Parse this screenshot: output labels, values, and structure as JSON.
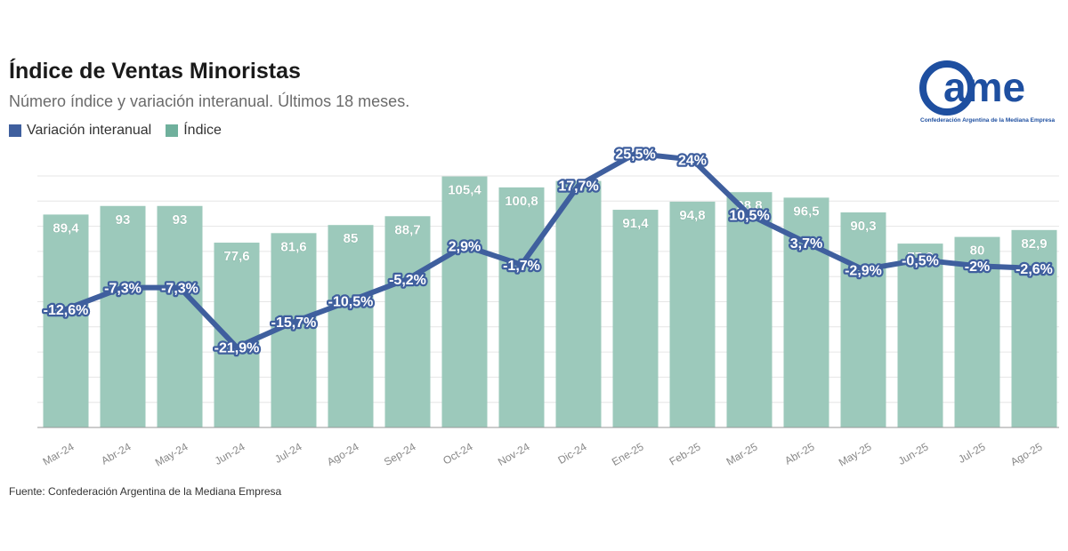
{
  "title": "Índice de Ventas Minoristas",
  "subtitle": "Número índice y variación interanual. Últimos 18 meses.",
  "source": "Fuente: Confederación Argentina de la Mediana Empresa",
  "logo": {
    "text": "ame",
    "caption": "Confederación Argentina de la Mediana Empresa"
  },
  "colors": {
    "bar": "#9cc9bb",
    "line": "#3f5f9e",
    "grid": "#e6e6e6",
    "bar_label": "#ffffff",
    "line_label": "#ffffff",
    "tick": "#888888"
  },
  "chart_data": {
    "type": "bar",
    "categories": [
      "Mar-24",
      "Abr-24",
      "May-24",
      "Jun-24",
      "Jul-24",
      "Ago-24",
      "Sep-24",
      "Oct-24",
      "Nov-24",
      "Dic-24",
      "Ene-25",
      "Feb-25",
      "Mar-25",
      "Abr-25",
      "May-25",
      "Jun-25",
      "Jul-25",
      "Ago-25"
    ],
    "legend_position": "top-left",
    "grid": true,
    "series": [
      {
        "name": "Variación interanual",
        "type": "line",
        "values": [
          -12.6,
          -7.3,
          -7.3,
          -21.9,
          -15.7,
          -10.5,
          -5.2,
          2.9,
          -1.7,
          17.7,
          25.5,
          24,
          10.5,
          3.7,
          -2.9,
          -0.5,
          -2,
          -2.6
        ],
        "labels": [
          "-12,6%",
          "-7,3%",
          "-7,3%",
          "-21,9%",
          "-15,7%",
          "-10,5%",
          "-5,2%",
          "2,9%",
          "-1,7%",
          "17,7%",
          "25,5%",
          "24%",
          "10,5%",
          "3,7%",
          "-2,9%",
          "-0,5%",
          "-2%",
          "-2,6%"
        ]
      },
      {
        "name": "Índice",
        "type": "bar",
        "values": [
          89.4,
          93,
          93,
          77.6,
          81.6,
          85,
          88.7,
          105.4,
          100.8,
          null,
          91.4,
          94.8,
          98.8,
          96.5,
          90.3,
          77.2,
          80,
          82.9
        ],
        "labels": [
          "89,4",
          "93",
          "93",
          "77,6",
          "81,6",
          "85",
          "88,7",
          "105,4",
          "100,8",
          "",
          "91,4",
          "94,8",
          "98,8",
          "96,5",
          "90,3",
          "77,2",
          "80",
          "82,9"
        ]
      }
    ]
  }
}
